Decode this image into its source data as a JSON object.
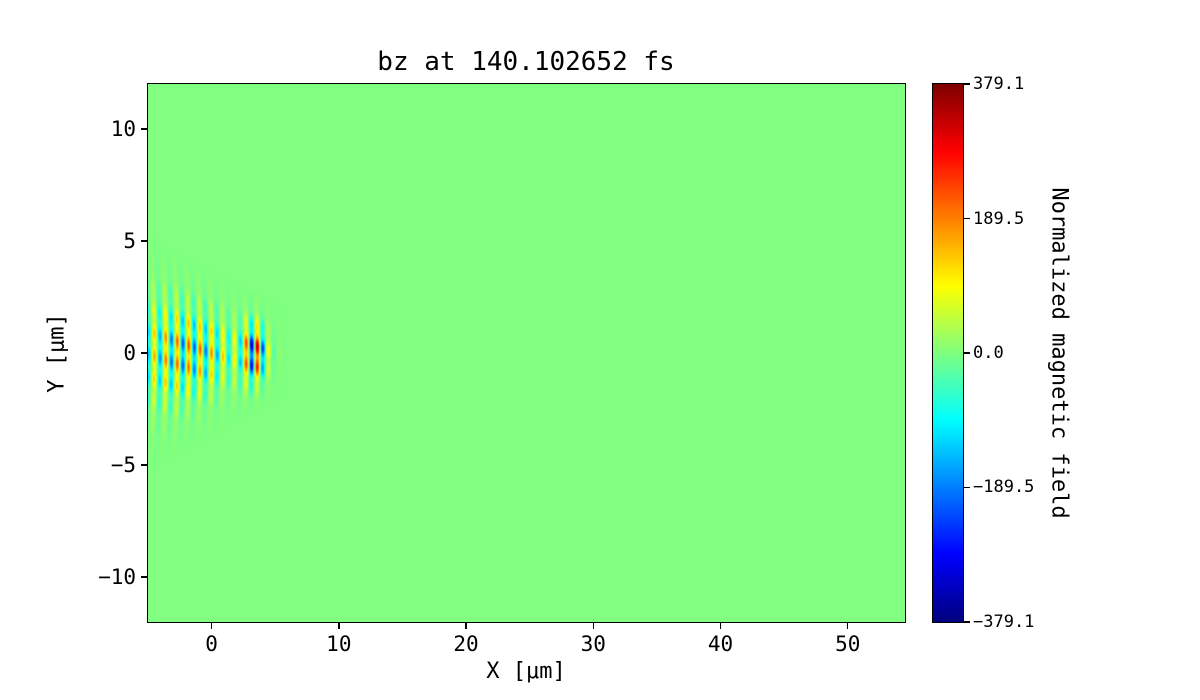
{
  "figure": {
    "colors": {
      "background": "#ffffff",
      "zero_field_green": "#80ff80",
      "spine": "#000000"
    }
  },
  "chart_data": {
    "type": "heatmap",
    "title": "bz at 140.102652 fs",
    "xlabel": "X [μm]",
    "ylabel": "Y [μm]",
    "xlim": [
      -5,
      54.5
    ],
    "ylim": [
      -12,
      12
    ],
    "grid": false,
    "colormap": "jet",
    "legend": "none",
    "x_ticks": {
      "values": [
        0,
        10,
        20,
        30,
        40,
        50
      ],
      "labels": [
        "0",
        "10",
        "20",
        "30",
        "40",
        "50"
      ]
    },
    "y_ticks": {
      "values": [
        -10,
        -5,
        0,
        5,
        10
      ],
      "labels": [
        "−10",
        "−5",
        "0",
        "5",
        "10"
      ]
    },
    "colorbar": {
      "label": "Normalized magnetic field",
      "vmin": -379.1,
      "vmax": 379.1,
      "ticks": {
        "values": [
          379.1,
          189.5,
          0.0,
          -189.5,
          -379.1
        ],
        "labels": [
          "379.1",
          "189.5",
          "0.0",
          "−189.5",
          "−379.1"
        ]
      }
    },
    "field": {
      "description": "bz is ~0 (uniform green) over almost the whole domain, except an oscillating laser pulse near the left edge centered on y=0, spanning x≈-5..5 and |y|≲3.5, alternating positive/negative stripes with peak |bz|≈379.1 near x≈3.4",
      "background_value": 0,
      "pulse": {
        "x_range": [
          -5,
          5
        ],
        "y_extent": 3.5,
        "peak_amplitude": 379.1,
        "wavelength_um": 0.9,
        "body_center_x": -2.0,
        "body_sigma_x": 4.2,
        "body_frac": 0.62,
        "front_peak_x": 3.4,
        "front_sigma_x": 0.9,
        "front_frac": 0.97,
        "y_sigma_base": 1.0,
        "y_sigma_slope": 0.14,
        "ripple_period_um": 1.05,
        "ripple_skew": 1.2,
        "wavefront_curvature": 0.09
      }
    }
  }
}
